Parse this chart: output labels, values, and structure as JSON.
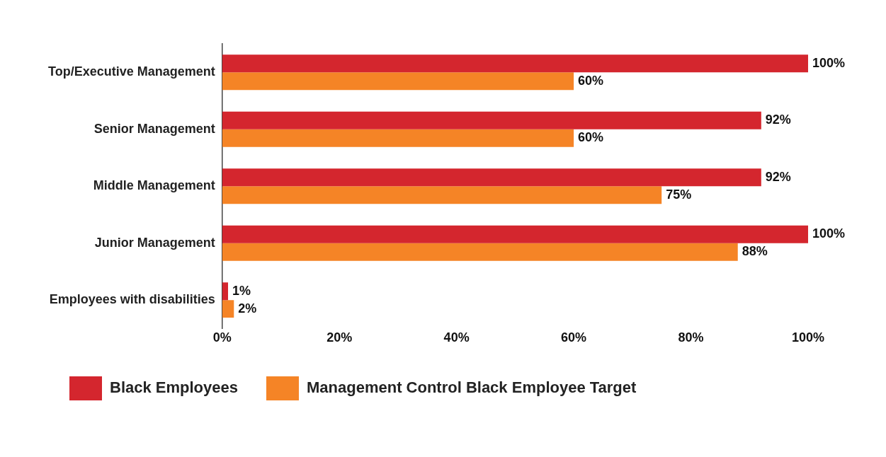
{
  "chart_data": {
    "type": "bar",
    "orientation": "horizontal",
    "categories": [
      "Top/Executive Management",
      "Senior Management",
      "Middle Management",
      "Junior Management",
      "Employees with disabilities"
    ],
    "series": [
      {
        "name": "Black Employees",
        "color": "#d4262e",
        "values": [
          100,
          92,
          92,
          100,
          1
        ],
        "value_labels": [
          "100%",
          "92%",
          "92%",
          "100%",
          "1%"
        ]
      },
      {
        "name": "Management Control Black Employee Target",
        "color": "#f58426",
        "values": [
          60,
          60,
          75,
          88,
          2
        ],
        "value_labels": [
          "60%",
          "60%",
          "75%",
          "88%",
          "2%"
        ]
      }
    ],
    "xlim": [
      0,
      100
    ],
    "xticks": [
      {
        "value": 0,
        "label": "0%"
      },
      {
        "value": 20,
        "label": "20%"
      },
      {
        "value": 40,
        "label": "40%"
      },
      {
        "value": 60,
        "label": "60%"
      },
      {
        "value": 80,
        "label": "80%"
      },
      {
        "value": 100,
        "label": "100%"
      }
    ],
    "grid": false,
    "legend": "bottom left"
  }
}
